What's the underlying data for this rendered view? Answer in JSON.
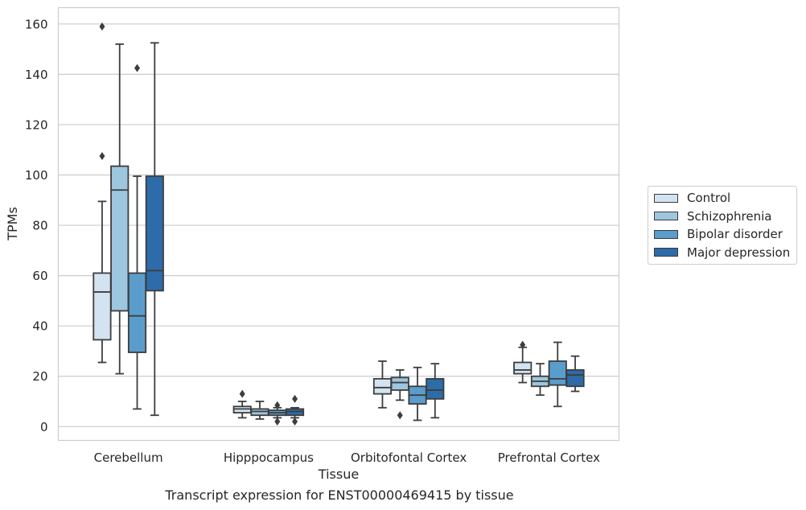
{
  "chart_data": {
    "type": "box",
    "xlabel": "Tissue",
    "ylabel": "TPMs",
    "caption": "Transcript expression for ENST00000469415 by tissue",
    "categories": [
      "Cerebellum",
      "Hipppocampus",
      "Orbitofontal Cortex",
      "Prefrontal Cortex"
    ],
    "ylim": [
      -5.5,
      166.5
    ],
    "yticks": [
      0,
      20,
      40,
      60,
      80,
      100,
      120,
      140,
      160
    ],
    "grid": true,
    "legend_position": "right",
    "series": [
      {
        "name": "Control",
        "color": "#d3e3f1",
        "boxes": [
          {
            "whislo": 25.5,
            "q1": 34.5,
            "med": 53.5,
            "q3": 61.0,
            "whishi": 89.5,
            "fliers": [
              107.5,
              159.0
            ]
          },
          {
            "whislo": 3.5,
            "q1": 5.5,
            "med": 7.0,
            "q3": 8.0,
            "whishi": 10.0,
            "fliers": [
              13.0
            ]
          },
          {
            "whislo": 7.5,
            "q1": 13.0,
            "med": 15.5,
            "q3": 19.0,
            "whishi": 26.0,
            "fliers": []
          },
          {
            "whislo": 17.5,
            "q1": 21.0,
            "med": 22.5,
            "q3": 25.5,
            "whishi": 31.5,
            "fliers": [
              32.5
            ]
          }
        ]
      },
      {
        "name": "Schizophrenia",
        "color": "#9dc6df",
        "boxes": [
          {
            "whislo": 21.0,
            "q1": 46.0,
            "med": 94.0,
            "q3": 103.5,
            "whishi": 152.0,
            "fliers": []
          },
          {
            "whislo": 3.0,
            "q1": 4.5,
            "med": 6.0,
            "q3": 7.0,
            "whishi": 10.0,
            "fliers": []
          },
          {
            "whislo": 10.5,
            "q1": 14.5,
            "med": 17.5,
            "q3": 19.5,
            "whishi": 22.5,
            "fliers": [
              4.5
            ]
          },
          {
            "whislo": 12.5,
            "q1": 16.0,
            "med": 18.0,
            "q3": 20.0,
            "whishi": 25.0,
            "fliers": []
          }
        ]
      },
      {
        "name": "Bipolar disorder",
        "color": "#5a9dcc",
        "boxes": [
          {
            "whislo": 7.0,
            "q1": 29.5,
            "med": 44.0,
            "q3": 61.0,
            "whishi": 99.5,
            "fliers": [
              142.5
            ]
          },
          {
            "whislo": 3.5,
            "q1": 4.5,
            "med": 5.5,
            "q3": 6.5,
            "whishi": 7.5,
            "fliers": [
              8.5,
              2.0
            ]
          },
          {
            "whislo": 2.5,
            "q1": 9.0,
            "med": 12.5,
            "q3": 16.0,
            "whishi": 23.5,
            "fliers": []
          },
          {
            "whislo": 8.0,
            "q1": 16.5,
            "med": 19.0,
            "q3": 26.0,
            "whishi": 33.5,
            "fliers": []
          }
        ]
      },
      {
        "name": "Major depression",
        "color": "#2d6ca9",
        "boxes": [
          {
            "whislo": 4.5,
            "q1": 54.0,
            "med": 62.0,
            "q3": 99.5,
            "whishi": 152.5,
            "fliers": []
          },
          {
            "whislo": 3.5,
            "q1": 4.5,
            "med": 6.0,
            "q3": 7.0,
            "whishi": 7.5,
            "fliers": [
              11.0,
              2.0
            ]
          },
          {
            "whislo": 3.5,
            "q1": 11.0,
            "med": 14.5,
            "q3": 19.0,
            "whishi": 25.0,
            "fliers": []
          },
          {
            "whislo": 14.0,
            "q1": 16.0,
            "med": 20.5,
            "q3": 22.5,
            "whishi": 28.0,
            "fliers": []
          }
        ]
      }
    ]
  }
}
